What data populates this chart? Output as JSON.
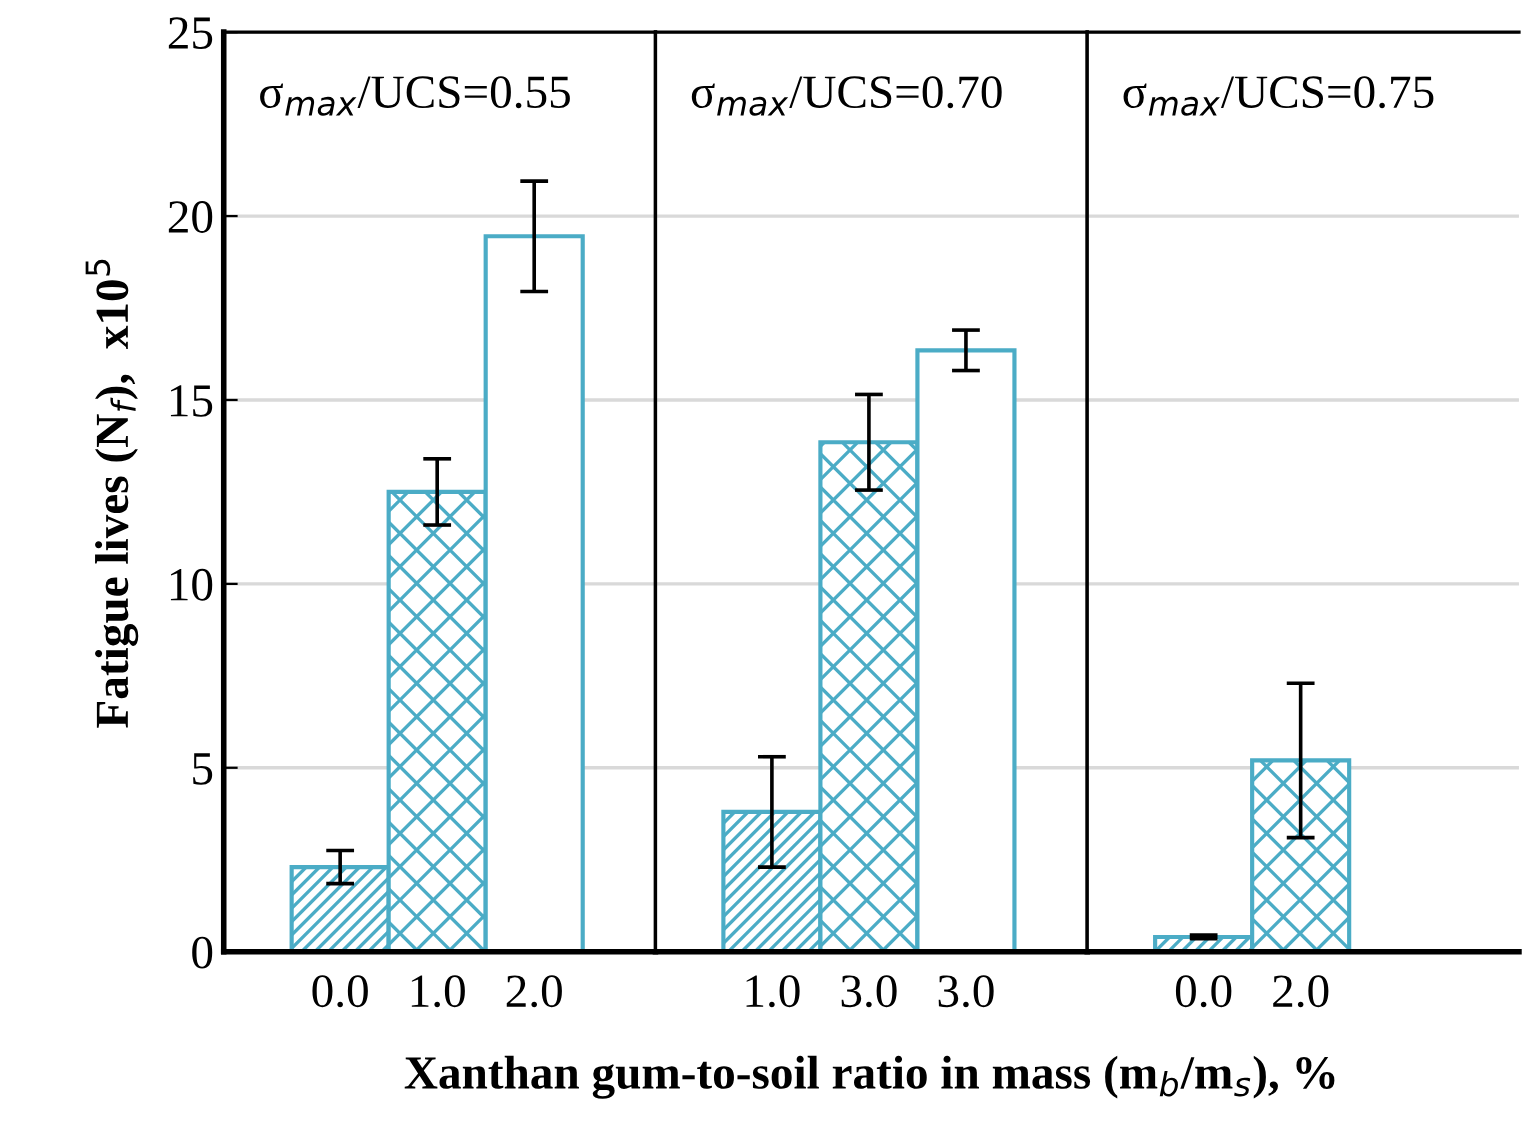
{
  "chart_data": [
    {
      "type": "bar",
      "categories": [
        "0.0",
        "1.0",
        "2.0"
      ],
      "values": [
        2.3,
        12.5,
        19.45
      ],
      "errors": [
        0.45,
        0.9,
        1.5
      ],
      "color": "#4bacc6",
      "ylim": [
        0,
        25
      ],
      "yticks": [
        0,
        5,
        10,
        15,
        20,
        25
      ],
      "grid": "y",
      "ylabel": "Fatigue lives (N$_{f}$),  x10$^{5}$",
      "annotations": [
        "σ$_{max}$/UCS=0.55"
      ]
    },
    {
      "type": "bar",
      "categories": [
        "1.0",
        "3.0",
        "3.0"
      ],
      "values": [
        3.8,
        13.85,
        16.35
      ],
      "errors": [
        1.5,
        1.3,
        0.55
      ],
      "color": "#4bacc6",
      "ylim": [
        0,
        25
      ],
      "yticks": [
        0,
        5,
        10,
        15,
        20,
        25
      ],
      "grid": "y",
      "tick_labels": "x",
      "xlabel": "Xanthan gum-to-soil ratio in mass (m$_{b}$/m$_{s}$), %",
      "annotations": [
        "σ$_{max}$/UCS=0.70"
      ]
    },
    {
      "type": "bar",
      "categories": [
        "0.0",
        "2.0"
      ],
      "values": [
        0.4,
        5.2
      ],
      "errors": [
        0.05,
        2.1
      ],
      "color": "#4bacc6",
      "ylim": [
        0,
        25
      ],
      "yticks": [
        0,
        5,
        10,
        15,
        20,
        25
      ],
      "grid": "y",
      "tick_labels": "x",
      "annotations": [
        "σ$_{max}$/UCS=0.75"
      ]
    }
  ]
}
